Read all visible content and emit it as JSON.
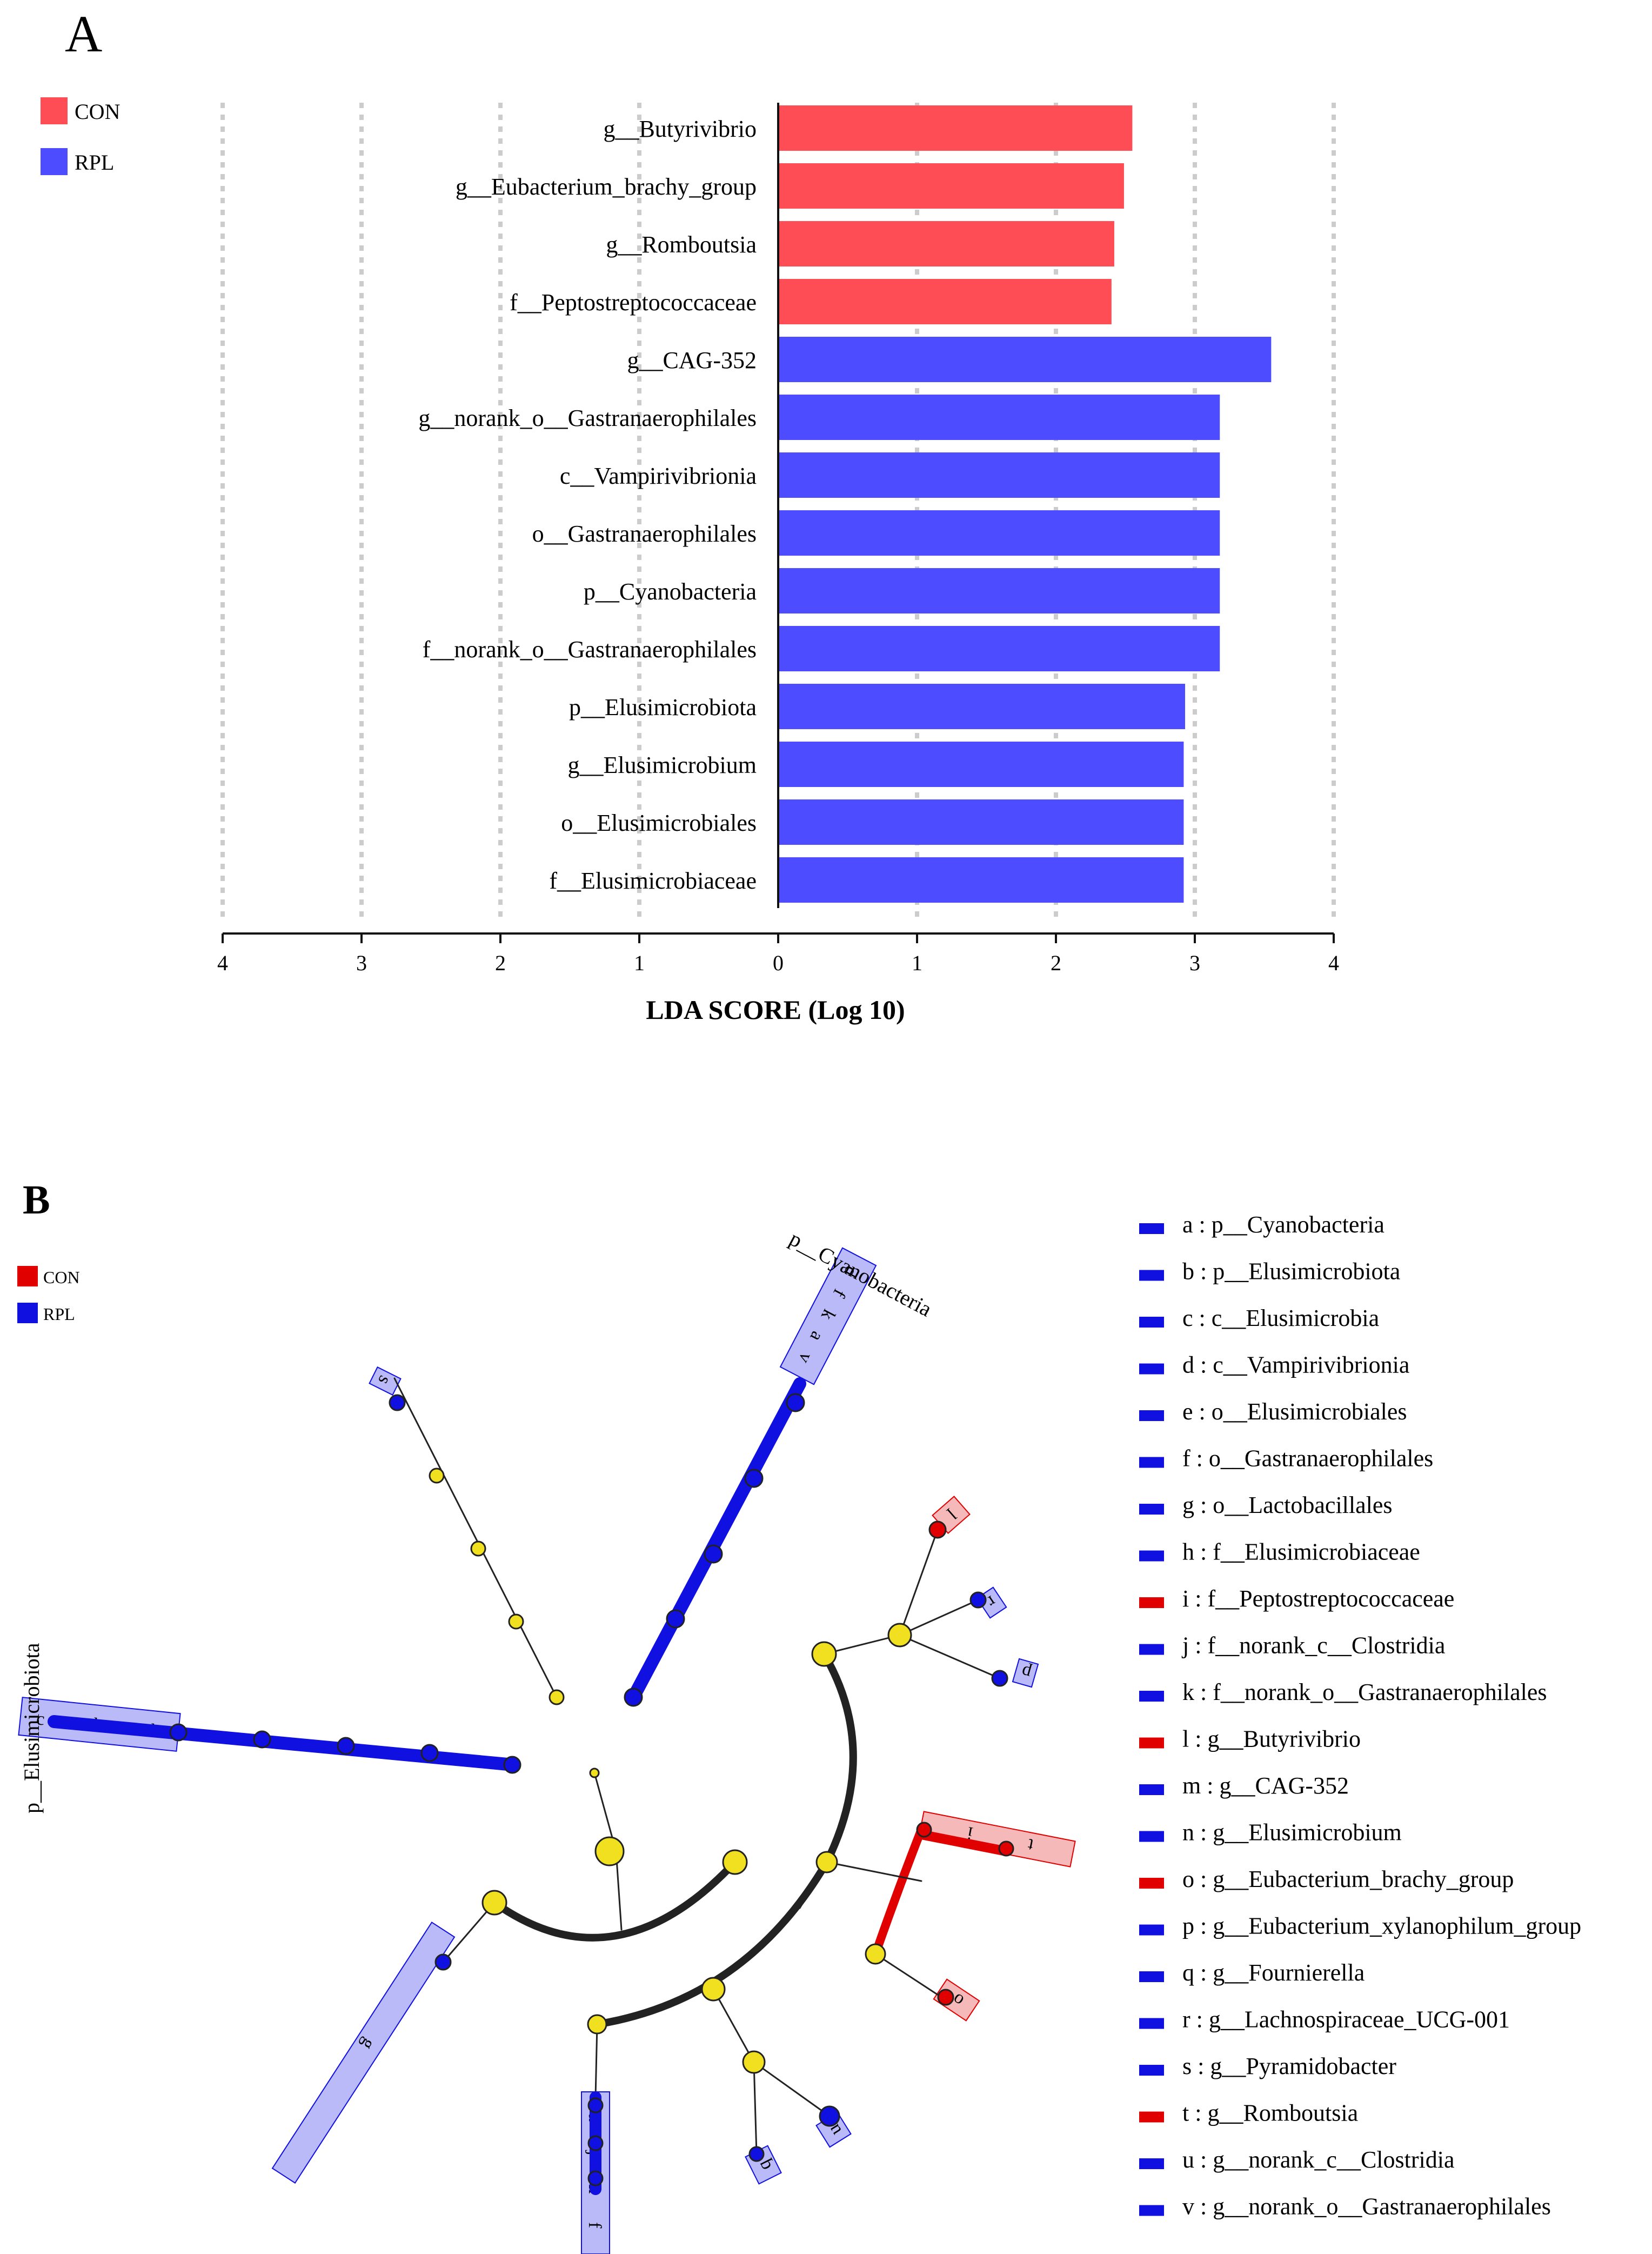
{
  "chart_data": [
    {
      "panel": "A",
      "type": "bar",
      "orientation": "horizontal",
      "title": "",
      "xlabel": "LDA SCORE (Log 10)",
      "ylabel": "",
      "xlim": [
        -4,
        4
      ],
      "x_ticks": [
        -4,
        -3,
        -2,
        -1,
        0,
        1,
        2,
        3,
        4
      ],
      "x_tick_labels": [
        "4",
        "3",
        "2",
        "1",
        "0",
        "1",
        "2",
        "3",
        "4"
      ],
      "grid": "vertical dotted",
      "legend": [
        {
          "label": "CON",
          "color": "#ff4d55"
        },
        {
          "label": "RPL",
          "color": "#4d4dff"
        }
      ],
      "legend_position": "top-left",
      "categories": [
        "g__Butyrivibrio",
        "g__Eubacterium_brachy_group",
        "g__Romboutsia",
        "f__Peptostreptococcaceae",
        "g__CAG-352",
        "g__norank_o__Gastranaerophilales",
        "c__Vampirivibrionia",
        "o__Gastranaerophilales",
        "p__Cyanobacteria",
        "f__norank_o__Gastranaerophilales",
        "p__Elusimicrobiota",
        "g__Elusimicrobium",
        "o__Elusimicrobiales",
        "f__Elusimicrobiaceae"
      ],
      "values": [
        2.55,
        2.49,
        2.42,
        2.4,
        3.55,
        3.18,
        3.18,
        3.18,
        3.18,
        3.18,
        2.93,
        2.92,
        2.92,
        2.92
      ],
      "groups": [
        "CON",
        "CON",
        "CON",
        "CON",
        "RPL",
        "RPL",
        "RPL",
        "RPL",
        "RPL",
        "RPL",
        "RPL",
        "RPL",
        "RPL",
        "RPL"
      ]
    },
    {
      "panel": "B",
      "type": "cladogram",
      "legend": [
        {
          "label": "CON",
          "color": "#e00000"
        },
        {
          "label": "RPL",
          "color": "#1010e0"
        }
      ],
      "legend_position": "top-left",
      "clade_labels": [
        "p__Cyanobacteria",
        "p__Elusimicrobiota"
      ],
      "markers": [
        {
          "key": "a",
          "taxon": "p__Cyanobacteria",
          "group": "RPL"
        },
        {
          "key": "b",
          "taxon": "p__Elusimicrobiota",
          "group": "RPL"
        },
        {
          "key": "c",
          "taxon": "c__Elusimicrobia",
          "group": "RPL"
        },
        {
          "key": "d",
          "taxon": "c__Vampirivibrionia",
          "group": "RPL"
        },
        {
          "key": "e",
          "taxon": "o__Elusimicrobiales",
          "group": "RPL"
        },
        {
          "key": "f",
          "taxon": "o__Gastranaerophilales",
          "group": "RPL"
        },
        {
          "key": "g",
          "taxon": "o__Lactobacillales",
          "group": "RPL"
        },
        {
          "key": "h",
          "taxon": "f__Elusimicrobiaceae",
          "group": "RPL"
        },
        {
          "key": "i",
          "taxon": "f__Peptostreptococcaceae",
          "group": "CON"
        },
        {
          "key": "j",
          "taxon": "f__norank_c__Clostridia",
          "group": "RPL"
        },
        {
          "key": "k",
          "taxon": "f__norank_o__Gastranaerophilales",
          "group": "RPL"
        },
        {
          "key": "l",
          "taxon": "g__Butyrivibrio",
          "group": "CON"
        },
        {
          "key": "m",
          "taxon": "g__CAG-352",
          "group": "RPL"
        },
        {
          "key": "n",
          "taxon": "g__Elusimicrobium",
          "group": "RPL"
        },
        {
          "key": "o",
          "taxon": "g__Eubacterium_brachy_group",
          "group": "CON"
        },
        {
          "key": "p",
          "taxon": "g__Eubacterium_xylanophilum_group",
          "group": "RPL"
        },
        {
          "key": "q",
          "taxon": "g__Fournierella",
          "group": "RPL"
        },
        {
          "key": "r",
          "taxon": "g__Lachnospiraceae_UCG-001",
          "group": "RPL"
        },
        {
          "key": "s",
          "taxon": "g__Pyramidobacter",
          "group": "RPL"
        },
        {
          "key": "t",
          "taxon": "g__Romboutsia",
          "group": "CON"
        },
        {
          "key": "u",
          "taxon": "g__norank_c__Clostridia",
          "group": "RPL"
        },
        {
          "key": "v",
          "taxon": "g__norank_o__Gastranaerophilales",
          "group": "RPL"
        }
      ]
    }
  ],
  "panels": {
    "a_label": "A",
    "b_label": "B"
  },
  "colors": {
    "con_bar": "#ff4d55",
    "rpl_bar": "#4d4dff",
    "con_node": "#e00000",
    "rpl_node": "#1010e0",
    "con_shade": "#f4a8a8",
    "rpl_shade": "#a9a9f7",
    "neutral_node": "#f0e020",
    "edge": "#222222"
  }
}
